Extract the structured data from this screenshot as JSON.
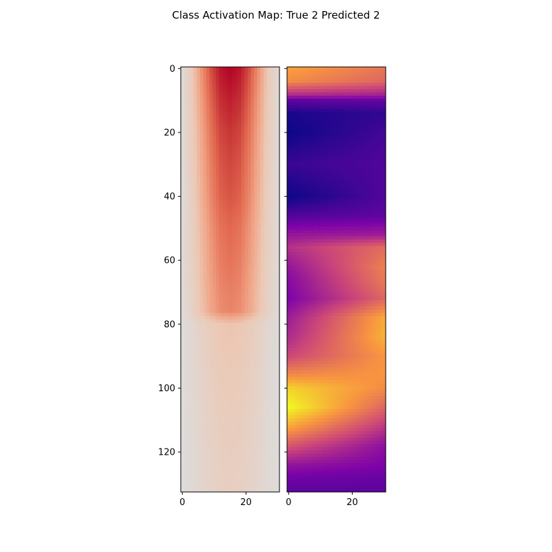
{
  "chart_data": {
    "type": "heatmap",
    "title": "Class Activation Map: True 2 Predicted 2",
    "image_rows": 133,
    "image_cols": 31,
    "panels": [
      {
        "name": "input",
        "colormap": "coolwarm-like (grey → salmon → dark red)",
        "xticks": [
          0,
          20
        ],
        "yticks": [
          0,
          20,
          40,
          60,
          80,
          100,
          120
        ],
        "ylim": [
          132.5,
          -0.5
        ],
        "xlim": [
          -0.5,
          30.5
        ],
        "row_value_profile": {
          "rows": [
            0,
            10,
            20,
            30,
            40,
            50,
            60,
            70,
            76,
            80,
            100,
            120,
            132
          ],
          "peak": [
            1.0,
            0.92,
            0.85,
            0.8,
            0.76,
            0.7,
            0.66,
            0.62,
            0.6,
            0.32,
            0.26,
            0.22,
            0.2
          ]
        },
        "column_value_profile": {
          "cols": [
            0,
            3,
            6,
            9,
            12,
            15,
            18,
            21,
            24,
            27,
            30
          ],
          "weight": [
            0.05,
            0.28,
            0.55,
            0.78,
            0.95,
            1.0,
            0.95,
            0.78,
            0.55,
            0.28,
            0.08
          ]
        }
      },
      {
        "name": "cam",
        "colormap": "plasma",
        "xticks": [
          0,
          20
        ],
        "ylim": [
          132.5,
          -0.5
        ],
        "xlim": [
          -0.5,
          30.5
        ],
        "row_value_profile": {
          "rows": [
            0,
            4,
            8,
            10,
            14,
            20,
            30,
            40,
            46,
            52,
            56,
            62,
            66,
            72,
            78,
            84,
            90,
            96,
            100,
            106,
            112,
            118,
            124,
            128,
            132
          ],
          "left": [
            0.78,
            0.72,
            0.42,
            0.18,
            0.03,
            0.0,
            0.1,
            0.0,
            0.15,
            0.32,
            0.42,
            0.32,
            0.28,
            0.25,
            0.35,
            0.4,
            0.5,
            0.72,
            0.9,
            1.0,
            0.8,
            0.55,
            0.32,
            0.22,
            0.18
          ],
          "right": [
            0.65,
            0.6,
            0.38,
            0.2,
            0.08,
            0.12,
            0.15,
            0.15,
            0.18,
            0.35,
            0.62,
            0.68,
            0.66,
            0.6,
            0.8,
            0.82,
            0.75,
            0.75,
            0.72,
            0.6,
            0.45,
            0.3,
            0.25,
            0.2,
            0.18
          ]
        }
      }
    ]
  }
}
